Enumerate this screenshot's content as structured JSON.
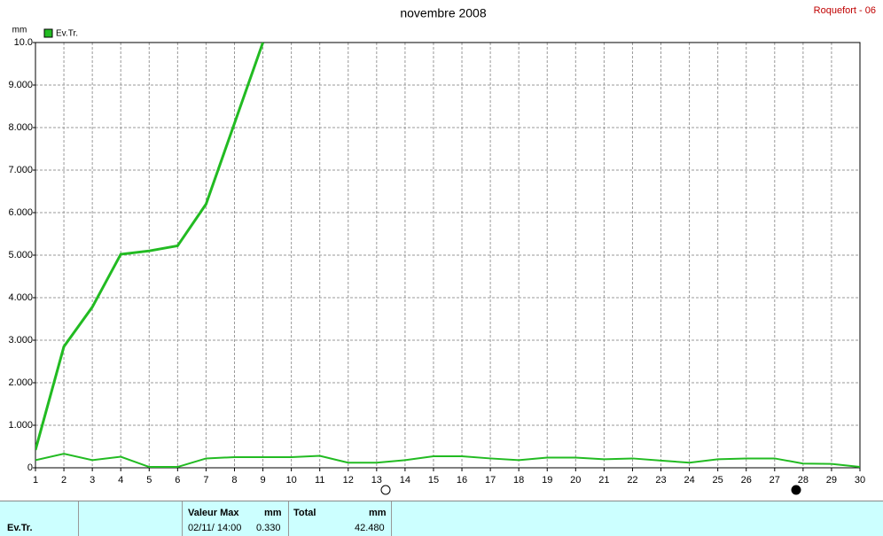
{
  "chart_data": {
    "type": "line",
    "title": "novembre 2008",
    "station": "Roquefort - 06",
    "y_unit": "mm",
    "x": [
      1,
      2,
      3,
      4,
      5,
      6,
      7,
      8,
      9,
      10,
      11,
      12,
      13,
      14,
      15,
      16,
      17,
      18,
      19,
      20,
      21,
      22,
      23,
      24,
      25,
      26,
      27,
      28,
      29,
      30
    ],
    "xlim": [
      1,
      30
    ],
    "xticks": [
      1,
      2,
      3,
      4,
      5,
      6,
      7,
      8,
      9,
      10,
      11,
      12,
      13,
      14,
      15,
      16,
      17,
      18,
      19,
      20,
      21,
      22,
      23,
      24,
      25,
      26,
      27,
      28,
      29,
      30
    ],
    "ylim": [
      0,
      10
    ],
    "yticks": [
      0,
      {
        "value": 1,
        "label": "1.000"
      },
      {
        "value": 2,
        "label": "2.000"
      },
      {
        "value": 3,
        "label": "3.000"
      },
      {
        "value": 4,
        "label": "4.000"
      },
      {
        "value": 5,
        "label": "5.000"
      },
      {
        "value": 6,
        "label": "6.000"
      },
      {
        "value": 7,
        "label": "7.000"
      },
      {
        "value": 8,
        "label": "8.000"
      },
      {
        "value": 9,
        "label": "9.000"
      },
      {
        "value": 10,
        "label": "10.0"
      }
    ],
    "grid": true,
    "legend": "top-left",
    "series": [
      {
        "name": "Ev.Tr.",
        "color": "#22bb22",
        "values": [
          0.18,
          0.33,
          0.18,
          0.26,
          0.02,
          0.02,
          0.22,
          0.25,
          0.25,
          0.25,
          0.28,
          0.12,
          0.12,
          0.18,
          0.27,
          0.27,
          0.22,
          0.18,
          0.24,
          0.24,
          0.2,
          0.22,
          0.17,
          0.12,
          0.2,
          0.22,
          0.22,
          0.1,
          0.09,
          0.02
        ]
      },
      {
        "color": "#22bb22",
        "values": [
          0.42,
          2.85,
          3.78,
          5.02,
          5.1,
          5.22,
          6.2,
          8.1,
          10.0,
          null,
          null,
          null,
          null,
          null,
          null,
          null,
          null,
          null,
          null,
          null,
          null,
          null,
          null,
          null,
          null,
          null,
          null,
          null,
          null,
          null
        ]
      }
    ]
  },
  "table": {
    "row_label": "Ev.Tr.",
    "max": {
      "label": "Valeur Max",
      "unit": "mm",
      "time": "02/11/ 14:00",
      "value": "0.330"
    },
    "total": {
      "label": "Total",
      "unit": "mm",
      "value": "42.480"
    }
  }
}
